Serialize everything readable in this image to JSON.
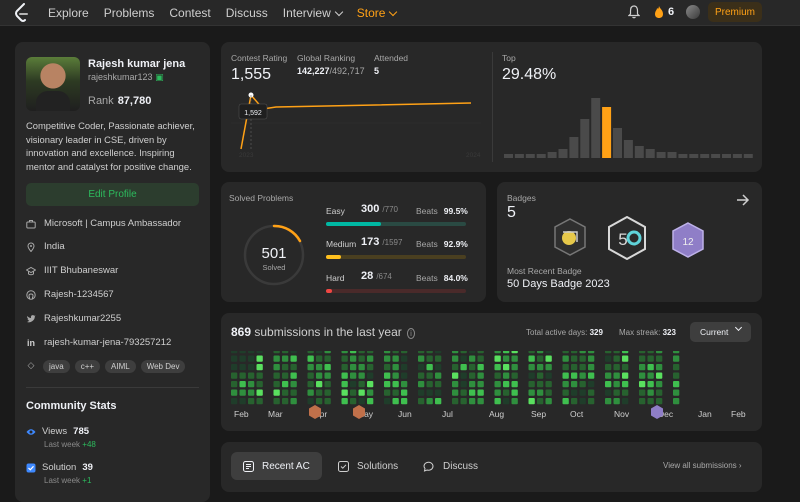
{
  "nav": {
    "items": [
      "Explore",
      "Problems",
      "Contest",
      "Discuss"
    ],
    "interview": "Interview",
    "store": "Store",
    "streak": "6",
    "premium": "Premium"
  },
  "profile": {
    "name": "Rajesh kumar jena",
    "handle": "rajeshkumar123",
    "rank_label": "Rank",
    "rank": "87,780",
    "bio": "Competitive Coder, Passionate achiever, visionary leader in CSE, driven by innovation and excellence. Inspiring mentor and catalyst for positive change.",
    "edit": "Edit Profile",
    "info": [
      {
        "icon": "briefcase-icon",
        "text": "Microsoft | Campus Ambassador"
      },
      {
        "icon": "location-icon",
        "text": "India"
      },
      {
        "icon": "school-icon",
        "text": "IIIT Bhubaneswar"
      },
      {
        "icon": "github-icon",
        "text": "Rajesh-1234567"
      },
      {
        "icon": "twitter-icon",
        "text": "Rajeshkumar2255"
      },
      {
        "icon": "linkedin-icon",
        "text": "rajesh-kumar-jena-793257212"
      }
    ],
    "tags": [
      "java",
      "c++",
      "AIML",
      "Web Dev"
    ]
  },
  "community": {
    "title": "Community Stats",
    "views_label": "Views",
    "views": "785",
    "views_sub": "Last week",
    "views_delta": "+48",
    "solution_label": "Solution",
    "solution": "39",
    "solution_sub": "Last week",
    "solution_delta": "+1"
  },
  "contest": {
    "rating_label": "Contest Rating",
    "rating": "1,555",
    "global_label": "Global Ranking",
    "global": "142,227",
    "global_total": "/492,717",
    "attended_label": "Attended",
    "attended": "5",
    "tooltip": "1,592",
    "year_start": "2023",
    "year_end": "2024",
    "top_label": "Top",
    "top": "29.48%",
    "histogram": [
      1,
      1,
      1,
      1,
      2,
      3,
      7,
      13,
      20,
      17,
      10,
      6,
      4,
      3,
      2,
      2,
      1,
      1,
      1,
      1,
      1,
      1,
      1
    ],
    "highlight_index": 9,
    "accent": "#ffa116"
  },
  "solved": {
    "title": "Solved Problems",
    "total": "501",
    "total_label": "Solved",
    "rows": [
      {
        "label": "Easy",
        "count": "300",
        "total": "/770",
        "beats_label": "Beats",
        "beats": "99.5%",
        "fraction": 0.39,
        "color": "#00b8a3",
        "track": "#2a4a43"
      },
      {
        "label": "Medium",
        "count": "173",
        "total": "/1597",
        "beats_label": "Beats",
        "beats": "92.9%",
        "fraction": 0.11,
        "color": "#ffc01e",
        "track": "#4a3f20"
      },
      {
        "label": "Hard",
        "count": "28",
        "total": "/674",
        "beats_label": "Beats",
        "beats": "84.0%",
        "fraction": 0.04,
        "color": "#ef4743",
        "track": "#4a2a2a"
      }
    ]
  },
  "badges": {
    "title": "Badges",
    "count": "5",
    "recent_label": "Most Recent Badge",
    "recent": "50 Days Badge 2023"
  },
  "heatmap": {
    "count": "869",
    "label": "submissions in the last year",
    "active_label": "Total active days:",
    "active": "329",
    "streak_label": "Max streak:",
    "streak": "323",
    "current": "Current",
    "months": [
      "Feb",
      "Mar",
      "Apr",
      "May",
      "Jun",
      "Jul",
      "Aug",
      "Sep",
      "Oct",
      "Nov",
      "Dec",
      "Jan",
      "Feb"
    ]
  },
  "bottom": {
    "recent": "Recent AC",
    "solutions": "Solutions",
    "discuss": "Discuss",
    "view_all": "View all submissions"
  }
}
